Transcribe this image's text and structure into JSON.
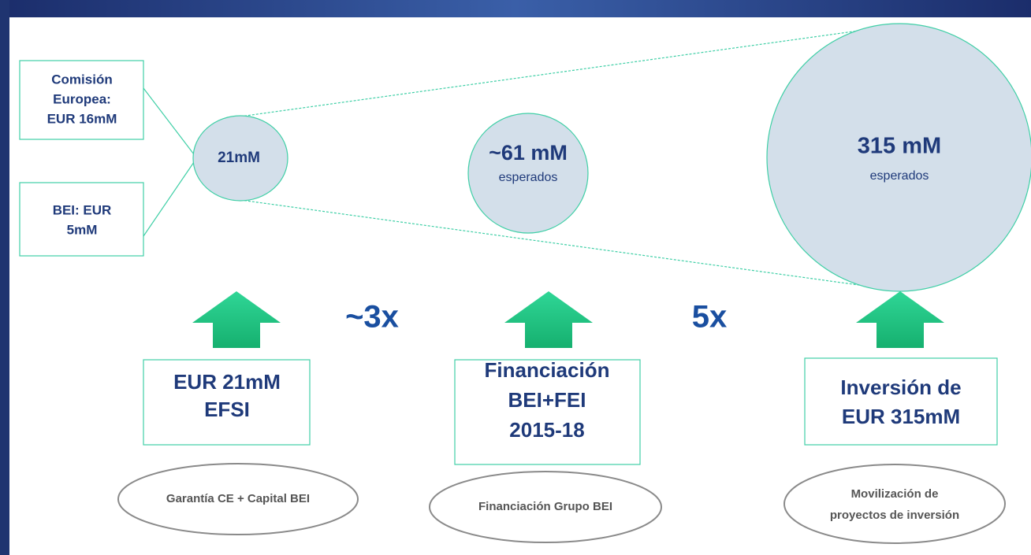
{
  "sources": [
    {
      "lines": [
        "Comisión",
        "Europea:",
        "EUR 16mM"
      ]
    },
    {
      "lines": [
        "BEI: EUR",
        "5mM"
      ]
    }
  ],
  "circles": [
    {
      "lines": [
        "21mM"
      ]
    },
    {
      "lines": [
        "~61 mM",
        "esperados"
      ]
    },
    {
      "lines": [
        "315 mM",
        "esperados"
      ]
    }
  ],
  "multipliers": [
    "~3x",
    "5x"
  ],
  "boxes": [
    {
      "lines": [
        "EUR 21mM",
        "EFSI"
      ]
    },
    {
      "lines": [
        "Financiación",
        "BEI+FEI",
        "2015-18"
      ]
    },
    {
      "lines": [
        "Inversión de",
        "EUR 315mM"
      ]
    }
  ],
  "ovals": [
    {
      "lines": [
        "Garantía CE + Capital BEI"
      ]
    },
    {
      "lines": [
        "Financiación  Grupo BEI"
      ]
    },
    {
      "lines": [
        "Movilización  de",
        "proyectos de inversión"
      ]
    }
  ]
}
